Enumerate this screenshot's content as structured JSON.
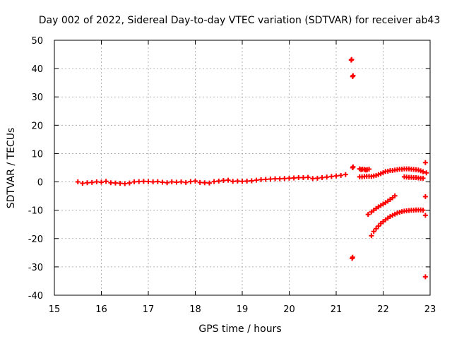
{
  "chart_data": {
    "type": "scatter",
    "title": "Day 002 of 2022, Sidereal Day-to-day VTEC variation (SDTVAR) for receiver ab43",
    "xlabel": "GPS time / hours",
    "ylabel": "SDTVAR / TECUs",
    "xlim": [
      15,
      23
    ],
    "ylim": [
      -40,
      50
    ],
    "xticks": [
      "15",
      "16",
      "17",
      "18",
      "19",
      "20",
      "21",
      "22",
      "23"
    ],
    "yticks": [
      "-40",
      "-30",
      "-20",
      "-10",
      "0",
      "10",
      "20",
      "30",
      "40",
      "50"
    ],
    "grid": true,
    "point_color": "#ff0000",
    "marker": "plus",
    "series": [
      {
        "x": [
          15.5,
          15.6,
          15.7,
          15.8,
          15.9,
          16.0,
          16.1,
          16.2,
          16.3,
          16.4,
          16.5,
          16.6,
          16.7,
          16.8,
          16.9,
          17.0,
          17.1,
          17.2,
          17.3,
          17.4,
          17.5,
          17.6,
          17.7,
          17.8,
          17.9,
          18.0,
          18.1,
          18.2,
          18.3,
          18.4,
          18.5,
          18.6,
          18.7,
          18.8,
          18.9,
          19.0,
          19.1,
          19.2,
          19.3,
          19.4,
          19.5,
          19.6,
          19.7,
          19.8,
          19.9,
          20.0,
          20.1,
          20.2,
          20.3,
          20.4,
          20.5,
          20.6,
          20.7,
          20.8,
          20.9,
          21.0,
          21.1,
          21.2
        ],
        "y": [
          0.0,
          -0.5,
          -0.3,
          -0.2,
          0.0,
          -0.1,
          0.2,
          -0.3,
          -0.4,
          -0.5,
          -0.6,
          -0.4,
          0.0,
          0.1,
          0.2,
          0.1,
          0.0,
          0.1,
          -0.1,
          -0.3,
          0.0,
          -0.1,
          0.0,
          -0.2,
          0.1,
          0.3,
          -0.2,
          -0.3,
          -0.4,
          0.1,
          0.3,
          0.5,
          0.6,
          0.2,
          0.3,
          0.2,
          0.3,
          0.4,
          0.6,
          0.8,
          0.9,
          1.0,
          1.1,
          1.1,
          1.2,
          1.3,
          1.4,
          1.5,
          1.5,
          1.6,
          1.2,
          1.3,
          1.5,
          1.7,
          1.9,
          2.1,
          2.3,
          2.6
        ]
      },
      {
        "x": [
          21.32,
          21.33,
          21.35,
          21.36,
          21.34,
          21.35,
          21.5,
          21.53,
          21.56,
          21.6,
          21.63,
          21.66,
          21.7,
          21.75,
          21.8,
          21.85,
          21.9,
          21.95,
          22.0,
          22.05,
          22.1,
          22.15,
          22.2,
          22.25,
          22.3,
          22.35,
          22.4,
          22.45,
          22.5,
          22.55,
          22.6,
          22.65,
          22.7,
          22.75,
          22.8,
          22.85
        ],
        "y": [
          43.0,
          43.2,
          37.2,
          37.5,
          -27.0,
          -26.6,
          4.6,
          4.3,
          4.5,
          4.4,
          4.2,
          4.3,
          4.5,
          1.9,
          2.1,
          2.3,
          2.6,
          2.9,
          3.3,
          3.7,
          3.8,
          4.0,
          4.0,
          4.2,
          4.3,
          4.5,
          4.5,
          4.6,
          4.6,
          4.6,
          4.5,
          4.4,
          4.3,
          4.2,
          3.9,
          3.6
        ]
      },
      {
        "x": [
          21.5,
          21.55,
          21.6,
          21.65,
          21.7,
          21.75,
          21.8,
          21.85,
          21.9,
          21.95,
          22.0,
          22.05,
          22.1,
          22.15,
          22.2,
          22.25,
          22.3,
          22.35,
          22.4,
          22.45,
          22.5,
          22.55,
          22.6,
          22.65,
          22.7,
          22.75,
          22.8,
          22.85
        ],
        "y": [
          1.8,
          1.8,
          1.9,
          2.0,
          2.0,
          -19.0,
          -17.5,
          -16.5,
          -15.6,
          -14.7,
          -14.0,
          -13.4,
          -12.8,
          -12.2,
          -11.8,
          -11.4,
          -11.0,
          -10.7,
          -10.5,
          -10.3,
          -10.2,
          -10.1,
          -10.0,
          -10.0,
          -9.9,
          -9.9,
          -9.9,
          -10.0
        ]
      },
      {
        "x": [
          21.68,
          21.75,
          21.8,
          21.85,
          21.9,
          21.95,
          22.0,
          22.05,
          22.1,
          22.15,
          22.2,
          22.25,
          22.45,
          22.5,
          22.55,
          22.6,
          22.65,
          22.7,
          22.75,
          22.8,
          22.85
        ],
        "y": [
          -11.5,
          -10.6,
          -10.0,
          -9.4,
          -8.8,
          -8.3,
          -7.8,
          -7.3,
          -6.8,
          -6.2,
          -5.6,
          -4.9,
          1.8,
          1.7,
          1.6,
          1.6,
          1.5,
          1.5,
          1.4,
          1.3,
          1.3
        ]
      },
      {
        "x": [
          22.9,
          22.9,
          22.9,
          22.9,
          22.92
        ],
        "y": [
          6.8,
          -5.2,
          -11.8,
          -33.5,
          3.2
        ]
      },
      {
        "x": [
          21.35,
          21.36
        ],
        "y": [
          5.0,
          5.3
        ]
      }
    ]
  }
}
